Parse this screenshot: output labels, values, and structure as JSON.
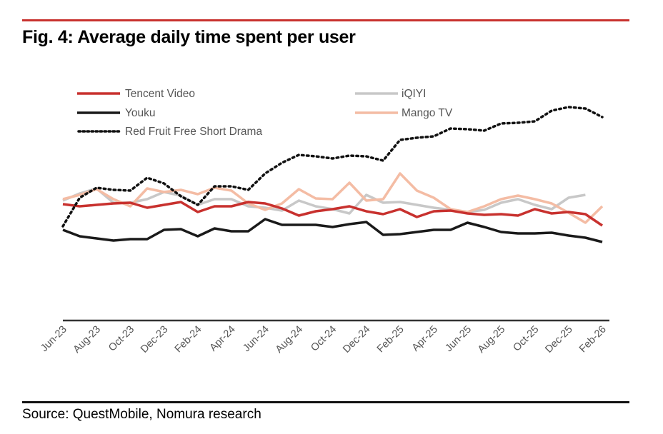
{
  "figure": {
    "title": "Fig. 4: Average daily time spent per user",
    "source": "Source: QuestMobile, Nomura research"
  },
  "chart_data": {
    "type": "line",
    "title": "Fig. 4: Average daily time spent per user",
    "xlabel": "",
    "ylabel": "",
    "y_units": "relative (no y-axis scale shown; values estimated in arbitrary units above baseline)",
    "ylim": [
      0,
      310
    ],
    "grid": false,
    "legend_position": "top-left, two columns",
    "x": [
      "Jun-23",
      "Jul-23",
      "Aug-23",
      "Sep-23",
      "Oct-23",
      "Nov-23",
      "Dec-23",
      "Jan-24",
      "Feb-24",
      "Mar-24",
      "Apr-24",
      "May-24",
      "Jun-24",
      "Jul-24",
      "Aug-24",
      "Sep-24",
      "Oct-24",
      "Nov-24",
      "Dec-24",
      "Jan-25",
      "Feb-25",
      "Mar-25",
      "Apr-25",
      "May-25",
      "Jun-25",
      "Jul-25",
      "Aug-25",
      "Sep-25",
      "Oct-25",
      "Nov-25",
      "Dec-25",
      "Jan-26",
      "Feb-26"
    ],
    "tick_labels": [
      "Jun-23",
      "Aug-23",
      "Oct-23",
      "Dec-23",
      "Feb-24",
      "Apr-24",
      "Jun-24",
      "Aug-24",
      "Oct-24",
      "Dec-24",
      "Feb-25",
      "Apr-25",
      "Jun-25",
      "Aug-25",
      "Oct-25",
      "Dec-25",
      "Feb-26"
    ],
    "series": [
      {
        "name": "Tencent Video",
        "color": "#c8312e",
        "style": "solid",
        "values": [
          163,
          160,
          162,
          164,
          165,
          158,
          162,
          166,
          152,
          160,
          160,
          166,
          164,
          157,
          147,
          153,
          156,
          160,
          153,
          149,
          156,
          145,
          153,
          154,
          150,
          148,
          149,
          147,
          156,
          150,
          152,
          149,
          133
        ]
      },
      {
        "name": "iQIYI",
        "color": "#c8c8c8",
        "style": "solid",
        "values": [
          168,
          178,
          185,
          165,
          165,
          170,
          180,
          175,
          162,
          170,
          170,
          160,
          158,
          154,
          168,
          160,
          156,
          150,
          176,
          165,
          166,
          162,
          158,
          155,
          152,
          155,
          165,
          170,
          162,
          156,
          172,
          176,
          null
        ]
      },
      {
        "name": "Youku",
        "color": "#1a1a1a",
        "style": "solid",
        "values": [
          127,
          118,
          115,
          112,
          114,
          114,
          127,
          128,
          118,
          129,
          125,
          125,
          142,
          134,
          134,
          134,
          131,
          135,
          138,
          120,
          121,
          124,
          127,
          127,
          137,
          131,
          124,
          122,
          122,
          123,
          119,
          116,
          110
        ]
      },
      {
        "name": "Mango TV",
        "color": "#f4bca4",
        "style": "solid",
        "values": [
          170,
          176,
          184,
          170,
          160,
          185,
          180,
          183,
          177,
          186,
          182,
          164,
          155,
          164,
          184,
          171,
          170,
          193,
          168,
          170,
          206,
          182,
          172,
          156,
          152,
          160,
          170,
          175,
          170,
          164,
          151,
          137,
          160
        ]
      },
      {
        "name": "Red Fruit Free Short Drama",
        "color": "#111111",
        "style": "dotted",
        "values": [
          132,
          172,
          186,
          183,
          182,
          200,
          192,
          174,
          162,
          188,
          188,
          183,
          206,
          221,
          232,
          230,
          227,
          231,
          230,
          224,
          253,
          256,
          258,
          269,
          268,
          266,
          276,
          277,
          279,
          294,
          299,
          297,
          285
        ]
      }
    ]
  }
}
